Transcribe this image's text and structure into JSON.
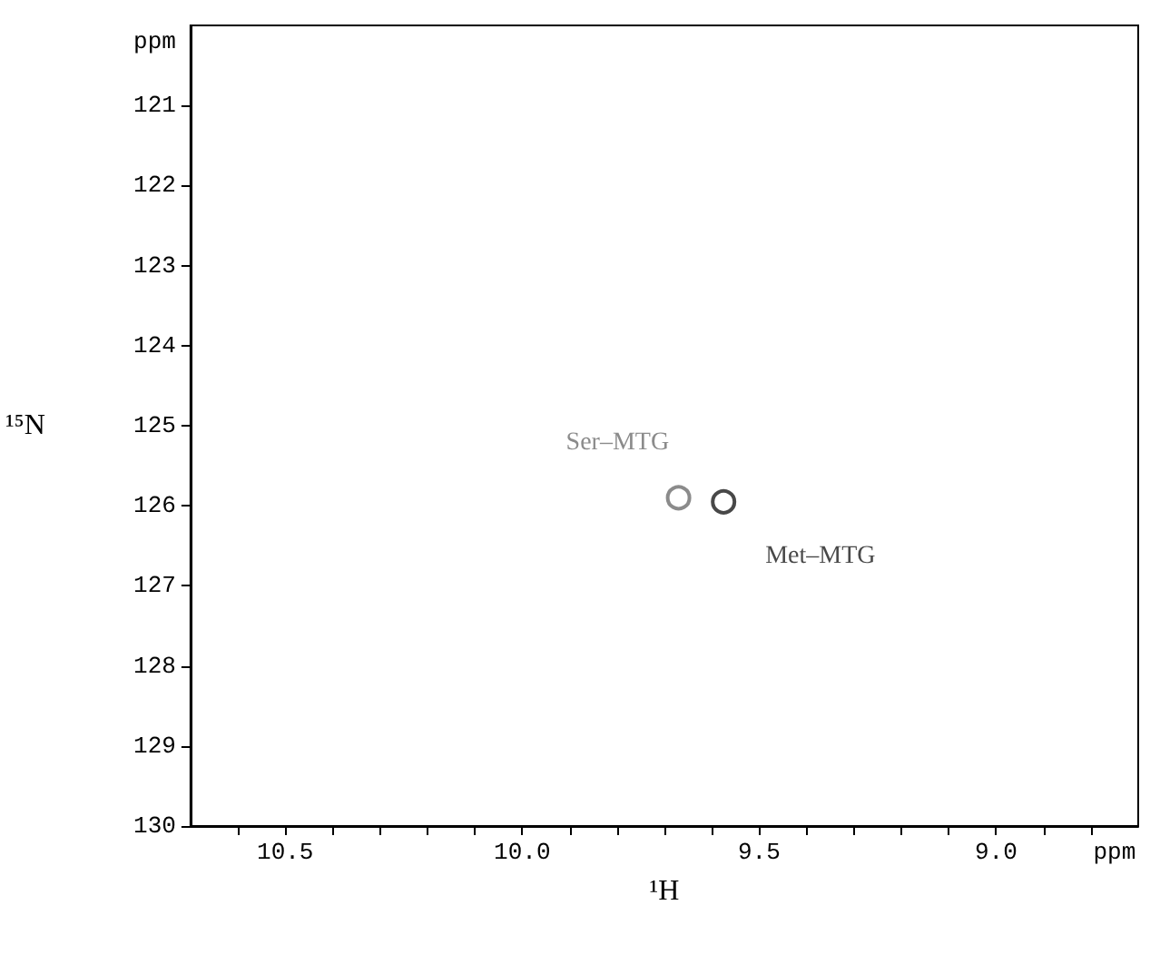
{
  "chart_data": {
    "type": "scatter",
    "xlabel": "¹H",
    "ylabel": "¹⁵N",
    "xlim": [
      10.7,
      8.7
    ],
    "ylim": [
      130,
      120
    ],
    "xticks": [
      {
        "value": 10.6,
        "label": null
      },
      {
        "value": 10.5,
        "label": "10.5"
      },
      {
        "value": 10.4,
        "label": null
      },
      {
        "value": 10.3,
        "label": null
      },
      {
        "value": 10.2,
        "label": null
      },
      {
        "value": 10.1,
        "label": null
      },
      {
        "value": 10,
        "label": "10.0"
      },
      {
        "value": 9.9,
        "label": null
      },
      {
        "value": 9.8,
        "label": null
      },
      {
        "value": 9.7,
        "label": null
      },
      {
        "value": 9.6,
        "label": null
      },
      {
        "value": 9.5,
        "label": "9.5"
      },
      {
        "value": 9.4,
        "label": null
      },
      {
        "value": 9.3,
        "label": null
      },
      {
        "value": 9.2,
        "label": null
      },
      {
        "value": 9.1,
        "label": null
      },
      {
        "value": 9,
        "label": "9.0"
      },
      {
        "value": 8.9,
        "label": null
      },
      {
        "value": 8.8,
        "label": null
      },
      {
        "value": 8.75,
        "label": "ppm"
      }
    ],
    "yticks": [
      {
        "value": 120.2,
        "label": "ppm"
      },
      121,
      122,
      123,
      124,
      125,
      126,
      127,
      128,
      129,
      130
    ],
    "marker": "circle",
    "grid": false,
    "legend": false,
    "series": [
      {
        "name": "Ser–MTG",
        "color": "#6e6e6e",
        "x": [
          9.67
        ],
        "values": [
          125.9
        ]
      },
      {
        "name": "Met–MTG",
        "color": "#1a1a1a",
        "x": [
          9.575
        ],
        "values": [
          125.95
        ]
      }
    ]
  }
}
